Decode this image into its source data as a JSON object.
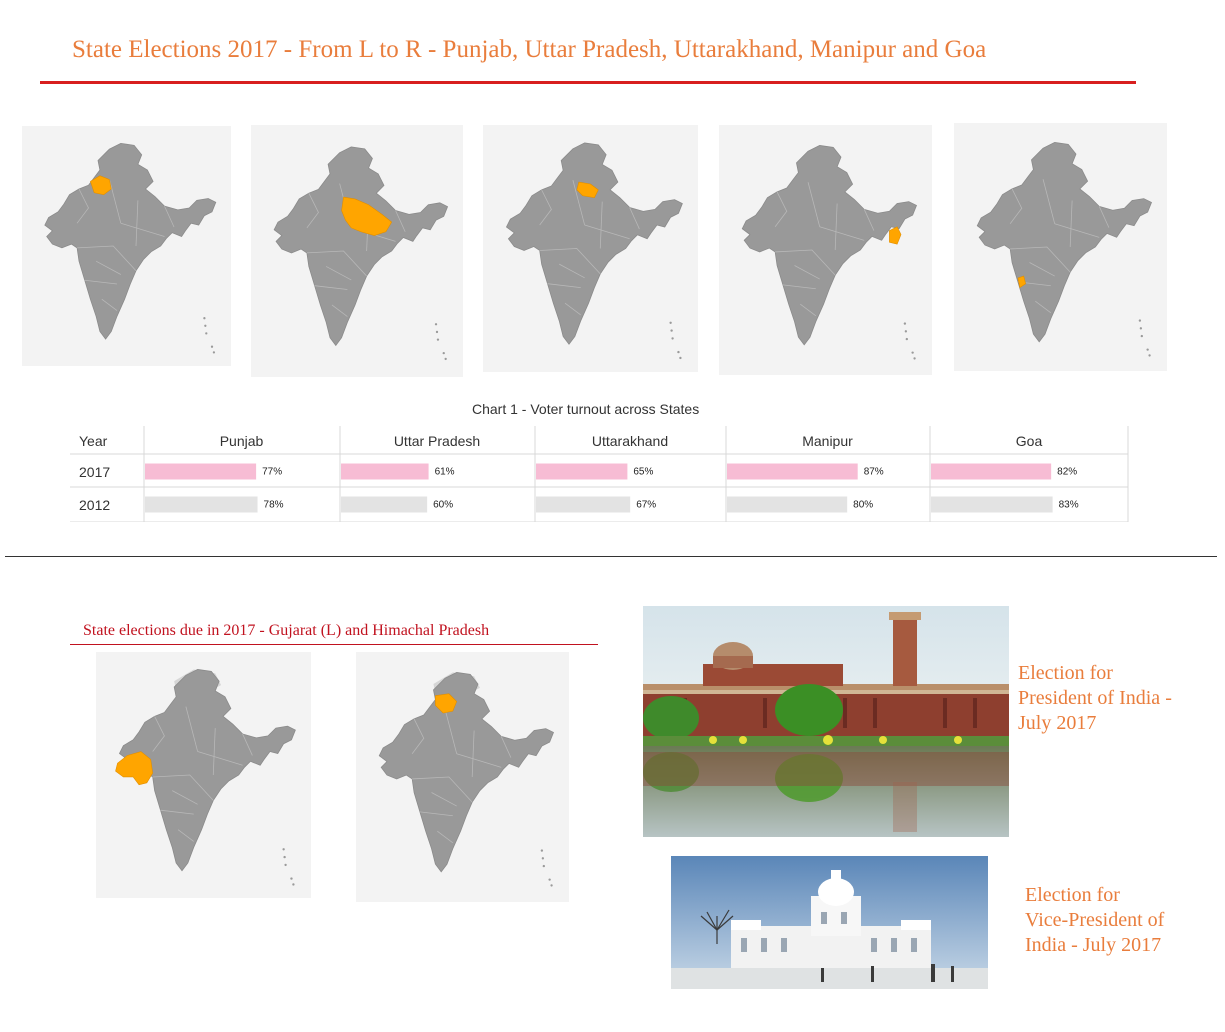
{
  "header": {
    "title": "State Elections 2017 - From L to R - Punjab, Uttar Pradesh, Uttarakhand, Manipur and Goa"
  },
  "colors": {
    "title": "#e97d3c",
    "rule": "#d81f1f",
    "map_land": "#999999",
    "map_highlight": "#ffa500",
    "bar_2017": "#f7bcd4",
    "bar_2012": "#e3e3e3",
    "subtitle": "#c1121f"
  },
  "maps_top": [
    {
      "state": "Punjab",
      "highlight": "punjab"
    },
    {
      "state": "Uttar Pradesh",
      "highlight": "up"
    },
    {
      "state": "Uttarakhand",
      "highlight": "uttarakhand"
    },
    {
      "state": "Manipur",
      "highlight": "manipur"
    },
    {
      "state": "Goa",
      "highlight": "goa"
    }
  ],
  "chart_data": {
    "type": "table",
    "title": "Chart 1 - Voter turnout across States",
    "row_header": "Year",
    "categories": [
      "Punjab",
      "Uttar Pradesh",
      "Uttarakhand",
      "Manipur",
      "Goa"
    ],
    "series": [
      {
        "name": "2017",
        "values": [
          77,
          61,
          65,
          87,
          82
        ],
        "labels": [
          "77%",
          "61%",
          "65%",
          "87%",
          "82%"
        ]
      },
      {
        "name": "2012",
        "values": [
          78,
          60,
          67,
          80,
          83
        ],
        "labels": [
          "78%",
          "60%",
          "67%",
          "80%",
          "83%"
        ]
      }
    ],
    "unit": "%",
    "xlim": [
      0,
      100
    ]
  },
  "due_section": {
    "title": "State elections due in 2017 - Gujarat (L) and Himachal Pradesh",
    "maps": [
      {
        "state": "Gujarat",
        "highlight": "gujarat"
      },
      {
        "state": "Himachal Pradesh",
        "highlight": "himachal"
      }
    ]
  },
  "captions": {
    "president": [
      "Election for",
      "President of India -",
      "July 2017"
    ],
    "vice_president": [
      "Election for",
      "Vice-President of",
      "India - July 2017"
    ]
  }
}
